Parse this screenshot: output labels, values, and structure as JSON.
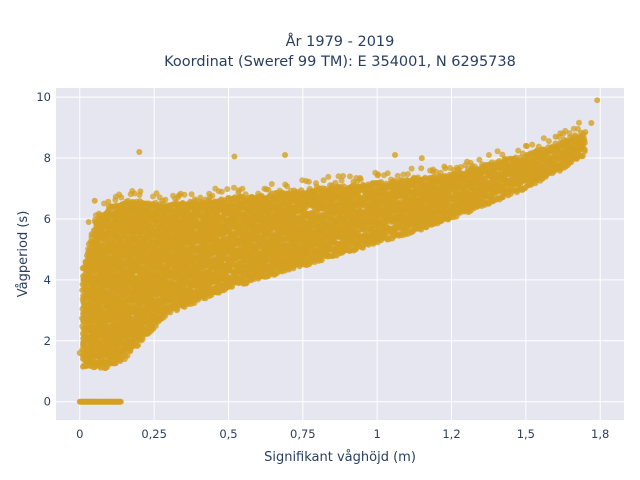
{
  "chart_data": {
    "type": "scatter",
    "title_line1": "År 1979 - 2019",
    "title_line2": "Koordinat (Sweref 99 TM): E 354001, N 6295738",
    "xlabel": "Signifikant våghöjd (m)",
    "ylabel": "Vågperiod (s)",
    "xlim": [
      -0.08,
      1.83
    ],
    "ylim": [
      -0.6,
      10.3
    ],
    "x_ticks": [
      0,
      0.25,
      0.5,
      0.75,
      1,
      1.25,
      1.5,
      1.75
    ],
    "x_tick_labels": [
      "0",
      "0,25",
      "0,5",
      "0,75",
      "1",
      "1,2",
      "1,5",
      "1,8"
    ],
    "y_ticks": [
      0,
      2,
      4,
      6,
      8,
      10
    ],
    "y_tick_labels": [
      "0",
      "2",
      "4",
      "6",
      "8",
      "10"
    ],
    "grid": true,
    "legend": "none",
    "marker_color": "#d4a021",
    "plot_bg": "#e5e6f0",
    "band": {
      "x": [
        0.01,
        0.05,
        0.1,
        0.15,
        0.2,
        0.25,
        0.3,
        0.4,
        0.5,
        0.6,
        0.7,
        0.8,
        0.9,
        1.0,
        1.1,
        1.2,
        1.3,
        1.4,
        1.5,
        1.6,
        1.7
      ],
      "y_low": [
        1.1,
        1.1,
        1.1,
        1.4,
        1.9,
        2.4,
        2.9,
        3.3,
        3.7,
        4.0,
        4.3,
        4.6,
        4.9,
        5.2,
        5.5,
        5.8,
        6.2,
        6.6,
        7.0,
        7.5,
        8.1
      ],
      "y_high": [
        4.4,
        5.9,
        6.4,
        6.6,
        6.6,
        6.5,
        6.5,
        6.6,
        6.7,
        6.8,
        6.9,
        7.0,
        7.1,
        7.2,
        7.3,
        7.4,
        7.6,
        7.9,
        8.1,
        8.5,
        8.9
      ]
    },
    "zero_cluster": {
      "x": [
        0.0,
        0.14
      ],
      "y": 0
    },
    "outliers": [
      {
        "x": 0.2,
        "y": 8.2
      },
      {
        "x": 0.52,
        "y": 8.05
      },
      {
        "x": 0.69,
        "y": 8.1
      },
      {
        "x": 1.06,
        "y": 8.1
      },
      {
        "x": 1.15,
        "y": 8.0
      },
      {
        "x": 1.74,
        "y": 9.9
      },
      {
        "x": 1.72,
        "y": 9.15
      },
      {
        "x": 0.0,
        "y": 1.6
      },
      {
        "x": 0.05,
        "y": 6.6
      },
      {
        "x": 0.03,
        "y": 5.9
      },
      {
        "x": 1.5,
        "y": 8.4
      },
      {
        "x": 1.6,
        "y": 8.7
      }
    ]
  }
}
